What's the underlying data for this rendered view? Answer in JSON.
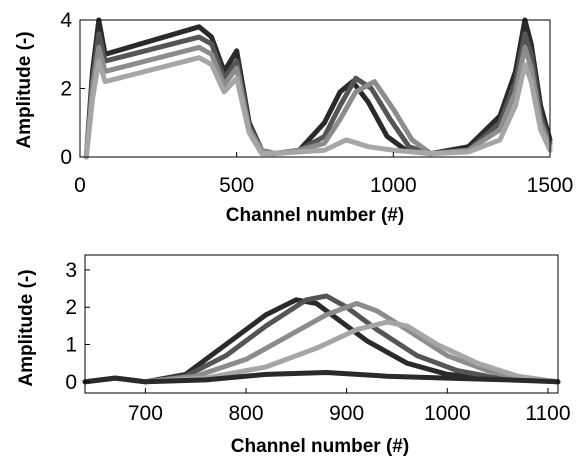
{
  "chart_data": [
    {
      "type": "line",
      "xlabel": "Channel number (#)",
      "ylabel": "Amplitude (-)",
      "xlim": [
        0,
        1500
      ],
      "ylim": [
        0,
        4
      ],
      "xticks": [
        0,
        500,
        1000,
        1500
      ],
      "xtick_labels": [
        "0",
        "500",
        "1000",
        "1500"
      ],
      "yticks": [
        0,
        2,
        4
      ],
      "ytick_labels": [
        "0",
        "2",
        "4"
      ],
      "grid": false,
      "series": [
        {
          "x": [
            20,
            40,
            60,
            80,
            380,
            420,
            460,
            500,
            540,
            580,
            620,
            700,
            780,
            830,
            870,
            920,
            980,
            1040,
            1120,
            1240,
            1340,
            1390,
            1420,
            1440,
            1470,
            1500
          ],
          "y": [
            0.0,
            2.5,
            4.0,
            3.0,
            3.8,
            3.5,
            2.5,
            3.1,
            1.0,
            0.2,
            0.1,
            0.2,
            1.0,
            1.9,
            2.2,
            1.6,
            0.6,
            0.2,
            0.1,
            0.3,
            1.2,
            2.5,
            4.0,
            3.3,
            1.5,
            0.5
          ]
        },
        {
          "x": [
            20,
            40,
            60,
            80,
            380,
            420,
            460,
            500,
            540,
            580,
            620,
            700,
            780,
            830,
            880,
            930,
            990,
            1050,
            1120,
            1240,
            1340,
            1390,
            1420,
            1440,
            1470,
            1500
          ],
          "y": [
            0.0,
            2.2,
            3.6,
            2.8,
            3.5,
            3.3,
            2.3,
            2.8,
            0.9,
            0.2,
            0.1,
            0.2,
            0.6,
            1.5,
            2.3,
            2.0,
            1.1,
            0.3,
            0.1,
            0.2,
            1.0,
            2.2,
            3.6,
            3.0,
            1.2,
            0.4
          ]
        },
        {
          "x": [
            20,
            40,
            60,
            80,
            380,
            420,
            460,
            500,
            540,
            580,
            620,
            700,
            780,
            830,
            880,
            940,
            1000,
            1060,
            1120,
            1240,
            1340,
            1390,
            1420,
            1440,
            1470,
            1500
          ],
          "y": [
            0.0,
            2.0,
            3.2,
            2.5,
            3.2,
            3.0,
            2.1,
            2.6,
            0.8,
            0.2,
            0.1,
            0.2,
            0.4,
            1.1,
            1.9,
            2.2,
            1.4,
            0.5,
            0.1,
            0.2,
            0.8,
            1.9,
            3.2,
            2.6,
            1.0,
            0.3
          ]
        },
        {
          "x": [
            20,
            40,
            60,
            80,
            380,
            420,
            460,
            500,
            540,
            580,
            620,
            700,
            780,
            850,
            920,
            1000,
            1060,
            1120,
            1240,
            1340,
            1390,
            1420,
            1440,
            1470,
            1500
          ],
          "y": [
            0.0,
            1.7,
            2.8,
            2.2,
            2.9,
            2.7,
            1.9,
            2.3,
            0.7,
            0.1,
            0.1,
            0.15,
            0.2,
            0.5,
            0.3,
            0.2,
            0.15,
            0.1,
            0.15,
            0.5,
            1.5,
            2.7,
            2.2,
            0.8,
            0.2
          ]
        }
      ]
    },
    {
      "type": "line",
      "xlabel": "Channel number (#)",
      "ylabel": "Amplitude (-)",
      "xlim": [
        640,
        1110
      ],
      "ylim": [
        -0.3,
        3.4
      ],
      "xticks": [
        700,
        800,
        900,
        1000,
        1100
      ],
      "xtick_labels": [
        "700",
        "800",
        "900",
        "1000",
        "1100"
      ],
      "yticks": [
        0,
        1,
        2,
        3
      ],
      "ytick_labels": [
        "0",
        "1",
        "2",
        "3"
      ],
      "grid": false,
      "series": [
        {
          "x": [
            640,
            670,
            700,
            740,
            780,
            820,
            850,
            870,
            890,
            920,
            960,
            1000,
            1040,
            1080,
            1110
          ],
          "y": [
            0.0,
            0.1,
            0.0,
            0.2,
            1.0,
            1.8,
            2.2,
            2.1,
            1.7,
            1.1,
            0.5,
            0.2,
            0.1,
            0.05,
            0.0
          ]
        },
        {
          "x": [
            640,
            670,
            700,
            740,
            780,
            820,
            860,
            880,
            900,
            930,
            970,
            1010,
            1050,
            1080,
            1110
          ],
          "y": [
            0.0,
            0.1,
            0.0,
            0.15,
            0.7,
            1.5,
            2.2,
            2.3,
            2.0,
            1.4,
            0.7,
            0.3,
            0.1,
            0.05,
            0.0
          ]
        },
        {
          "x": [
            640,
            670,
            700,
            750,
            800,
            840,
            880,
            910,
            930,
            960,
            1000,
            1040,
            1070,
            1110
          ],
          "y": [
            0.0,
            0.1,
            0.0,
            0.15,
            0.6,
            1.2,
            1.8,
            2.1,
            1.9,
            1.4,
            0.7,
            0.3,
            0.1,
            0.0
          ]
        },
        {
          "x": [
            640,
            670,
            700,
            760,
            820,
            870,
            910,
            940,
            960,
            990,
            1030,
            1070,
            1110
          ],
          "y": [
            0.0,
            0.1,
            0.0,
            0.1,
            0.4,
            0.9,
            1.4,
            1.6,
            1.5,
            1.0,
            0.5,
            0.15,
            0.0
          ]
        },
        {
          "x": [
            640,
            670,
            700,
            760,
            820,
            880,
            940,
            1000,
            1060,
            1110
          ],
          "y": [
            0.0,
            0.1,
            0.0,
            0.05,
            0.2,
            0.25,
            0.15,
            0.1,
            0.05,
            0.0
          ]
        }
      ]
    }
  ],
  "style": {
    "series_colors": [
      "#2a2a2a",
      "#555555",
      "#8c8c8c",
      "#a6a6a6"
    ],
    "axis_color": "#000000"
  }
}
